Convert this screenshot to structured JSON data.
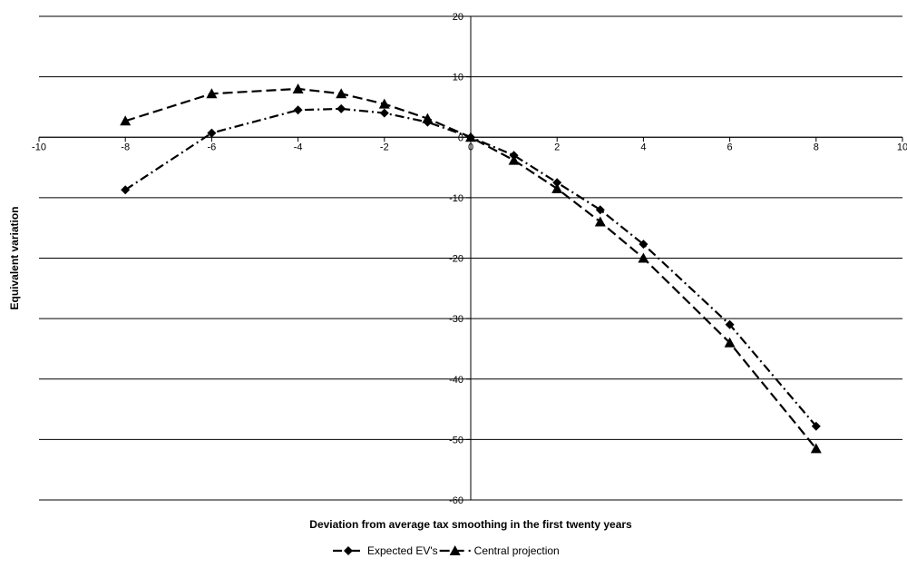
{
  "chart_data": {
    "type": "line",
    "title": "",
    "xlabel": "Deviation from average tax smoothing in the first twenty years",
    "ylabel": "Equivalent variation",
    "xlim": [
      -10,
      10
    ],
    "ylim": [
      -60,
      20
    ],
    "x_ticks": [
      -10,
      -8,
      -6,
      -4,
      -2,
      0,
      2,
      4,
      6,
      8,
      10
    ],
    "y_ticks": [
      20,
      10,
      0,
      -10,
      -20,
      -30,
      -40,
      -50,
      -60
    ],
    "grid": "horizontal",
    "legend_position": "bottom",
    "series": [
      {
        "name": "Expected EV's",
        "marker": "diamond",
        "dash": "dash-dot",
        "color": "#000000",
        "points": [
          [
            -8,
            -8.7
          ],
          [
            -6,
            0.7
          ],
          [
            -4,
            4.5
          ],
          [
            -3,
            4.7
          ],
          [
            -2,
            4.0
          ],
          [
            -1,
            2.5
          ],
          [
            0,
            0
          ],
          [
            1,
            -3
          ],
          [
            2,
            -7.5
          ],
          [
            3,
            -12
          ],
          [
            4,
            -17.7
          ],
          [
            6,
            -31
          ],
          [
            8,
            -47.8
          ]
        ]
      },
      {
        "name": "Central projection",
        "marker": "triangle",
        "dash": "dash",
        "color": "#000000",
        "points": [
          [
            -8,
            2.7
          ],
          [
            -6,
            7.2
          ],
          [
            -4,
            8.0
          ],
          [
            -3,
            7.2
          ],
          [
            -2,
            5.5
          ],
          [
            -1,
            3.1
          ],
          [
            0,
            0
          ],
          [
            1,
            -3.8
          ],
          [
            2,
            -8.5
          ],
          [
            3,
            -14
          ],
          [
            4,
            -20
          ],
          [
            6,
            -34
          ],
          [
            8,
            -51.5
          ]
        ]
      }
    ]
  }
}
